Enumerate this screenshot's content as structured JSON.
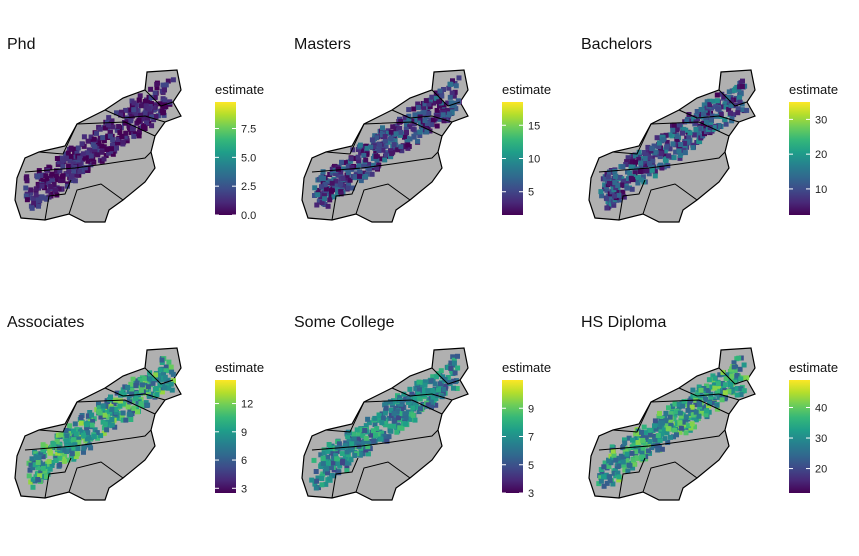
{
  "colors": {
    "state_fill": "#b0b0b0",
    "state_border": "#000000",
    "viridis": [
      "#440154",
      "#482878",
      "#3e4a89",
      "#31688e",
      "#26828e",
      "#1f9e89",
      "#35b779",
      "#6dcd59",
      "#b4de2c",
      "#fde725"
    ]
  },
  "legend_title": "estimate",
  "panels": [
    {
      "title": "Phd",
      "min": 0.0,
      "max": 9.8,
      "ticks": [
        {
          "v": 0.0,
          "label": "0.0"
        },
        {
          "v": 2.5,
          "label": "2.5"
        },
        {
          "v": 5.0,
          "label": "5.0"
        },
        {
          "v": 7.5,
          "label": "7.5"
        }
      ],
      "bias": 0.08,
      "spread": 0.15
    },
    {
      "title": "Masters",
      "min": 1.5,
      "max": 18.5,
      "ticks": [
        {
          "v": 5,
          "label": "5"
        },
        {
          "v": 10,
          "label": "10"
        },
        {
          "v": 15,
          "label": "15"
        }
      ],
      "bias": 0.2,
      "spread": 0.22
    },
    {
      "title": "Bachelors",
      "min": 2.5,
      "max": 35,
      "ticks": [
        {
          "v": 10,
          "label": "10"
        },
        {
          "v": 20,
          "label": "20"
        },
        {
          "v": 30,
          "label": "30"
        }
      ],
      "bias": 0.25,
      "spread": 0.25
    },
    {
      "title": "Associates",
      "min": 2.5,
      "max": 14.5,
      "ticks": [
        {
          "v": 3,
          "label": "3"
        },
        {
          "v": 6,
          "label": "6"
        },
        {
          "v": 9,
          "label": "9"
        },
        {
          "v": 12,
          "label": "12"
        }
      ],
      "bias": 0.55,
      "spread": 0.3
    },
    {
      "title": "Some College",
      "min": 3,
      "max": 11,
      "ticks": [
        {
          "v": 3,
          "label": "3"
        },
        {
          "v": 5,
          "label": "5"
        },
        {
          "v": 7,
          "label": "7"
        },
        {
          "v": 9,
          "label": "9"
        }
      ],
      "bias": 0.45,
      "spread": 0.25
    },
    {
      "title": "HS Diploma",
      "min": 12,
      "max": 49,
      "ticks": [
        {
          "v": 20,
          "label": "20"
        },
        {
          "v": 30,
          "label": "30"
        },
        {
          "v": 40,
          "label": "40"
        }
      ],
      "bias": 0.55,
      "spread": 0.3
    }
  ]
}
